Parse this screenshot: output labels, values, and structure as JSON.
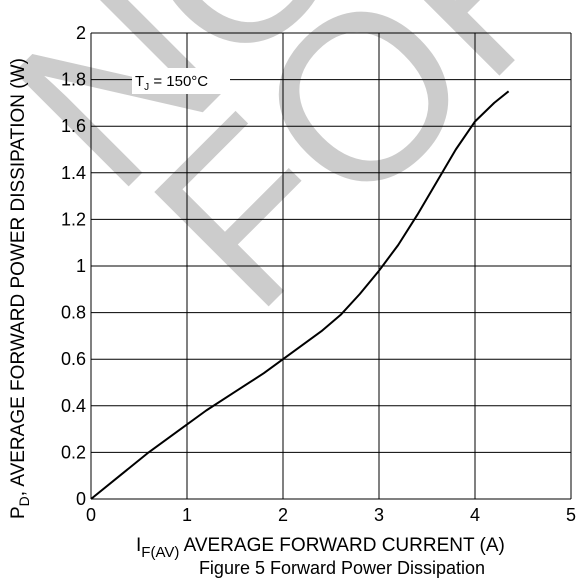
{
  "chart_data": {
    "type": "line",
    "caption": "Figure 5 Forward Power Dissipation",
    "xlabel": {
      "main": "I",
      "sub": "F(AV)",
      "rest": " AVERAGE FORWARD CURRENT (A)"
    },
    "ylabel": {
      "main": "P",
      "sub": "D",
      "rest": ", AVERAGE FORWARD POWER DISSIPATION (W)"
    },
    "xlim": [
      0,
      5
    ],
    "ylim": [
      0,
      2
    ],
    "xticks": [
      "0",
      "1",
      "2",
      "3",
      "4",
      "5"
    ],
    "yticks": [
      "0",
      "0.2",
      "0.4",
      "0.6",
      "0.8",
      "1",
      "1.2",
      "1.4",
      "1.6",
      "1.8",
      "2"
    ],
    "grid": true,
    "annotation": {
      "main": "T",
      "sub": "J",
      "rest": " =  150°C"
    },
    "watermark": "NOT FOR",
    "series": [
      {
        "x": [
          0,
          0.3,
          0.6,
          0.9,
          1.2,
          1.5,
          1.8,
          2.0,
          2.2,
          2.4,
          2.6,
          2.8,
          3.0,
          3.2,
          3.4,
          3.6,
          3.8,
          4.0,
          4.2,
          4.35
        ],
        "y": [
          0,
          0.1,
          0.2,
          0.29,
          0.38,
          0.46,
          0.54,
          0.6,
          0.66,
          0.72,
          0.79,
          0.88,
          0.98,
          1.09,
          1.22,
          1.36,
          1.5,
          1.62,
          1.7,
          1.75
        ]
      }
    ]
  }
}
